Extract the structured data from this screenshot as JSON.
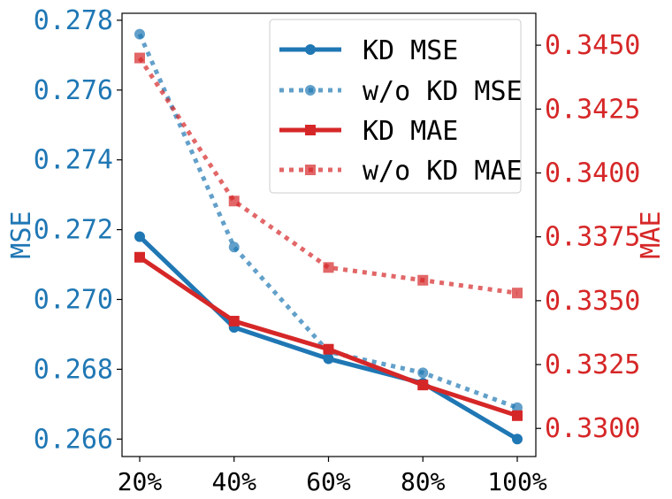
{
  "chart_data": {
    "type": "line",
    "categories": [
      "20%",
      "40%",
      "60%",
      "80%",
      "100%"
    ],
    "left_axis": {
      "label": "MSE",
      "color": "#1f77b4",
      "range": [
        0.2655,
        0.2782
      ],
      "ticks": [
        0.266,
        0.268,
        0.27,
        0.272,
        0.274,
        0.276,
        0.278
      ],
      "tick_labels": [
        "0.266",
        "0.268",
        "0.270",
        "0.272",
        "0.274",
        "0.276",
        "0.278"
      ]
    },
    "right_axis": {
      "label": "MAE",
      "color": "#d62728",
      "range": [
        0.3289,
        0.34625
      ],
      "ticks": [
        0.33,
        0.3325,
        0.335,
        0.3375,
        0.34,
        0.3425,
        0.345
      ],
      "tick_labels": [
        "0.3300",
        "0.3325",
        "0.3350",
        "0.3375",
        "0.3400",
        "0.3425",
        "0.3450"
      ]
    },
    "series": [
      {
        "name": "KD MSE",
        "axis": "left",
        "color": "#1f77b4",
        "style": "solid",
        "marker": "circle",
        "values": [
          0.2718,
          0.2692,
          0.2683,
          0.2676,
          0.266
        ]
      },
      {
        "name": "w/o KD MSE",
        "axis": "left",
        "color": "#1f77b4",
        "style": "dotted",
        "marker": "circle",
        "values": [
          0.2776,
          0.2715,
          0.2685,
          0.2679,
          0.2669
        ]
      },
      {
        "name": "KD MAE",
        "axis": "right",
        "color": "#d62728",
        "style": "solid",
        "marker": "square",
        "values": [
          0.3367,
          0.3342,
          0.3331,
          0.3317,
          0.3305
        ]
      },
      {
        "name": "w/o KD MAE",
        "axis": "right",
        "color": "#d62728",
        "style": "dotted",
        "marker": "square",
        "values": [
          0.3445,
          0.3389,
          0.3363,
          0.3358,
          0.3353
        ]
      }
    ],
    "legend": {
      "position": "top-right"
    },
    "grid": false
  }
}
